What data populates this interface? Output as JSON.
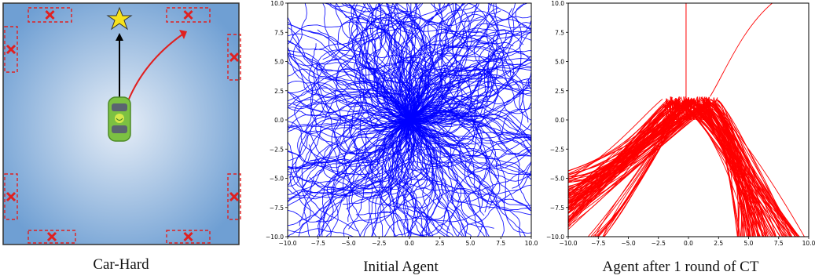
{
  "colors": {
    "env_bg_outer": "#6f9fd3",
    "env_bg_inner": "#e7eef7",
    "obstacle": "#e02020",
    "arrow_black": "#000000",
    "arrow_red": "#e02020",
    "star": "#f7e21b",
    "car": "#7cc142",
    "initial_agent": "#0000ff",
    "ct_agent": "#ff0000"
  },
  "icons": {
    "goal": "star-icon",
    "vehicle": "car-icon",
    "obstacle": "x-mark-icon"
  },
  "captions": {
    "env": "Car-Hard",
    "initial": "Initial Agent",
    "after_ct": "Agent after 1 round of CT"
  },
  "chart_data": [
    {
      "type": "scatter",
      "title": "",
      "xlabel": "",
      "ylabel": "",
      "xlim": [
        -10.0,
        10.0
      ],
      "ylim": [
        -10.0,
        10.0
      ],
      "xticks": [
        "−10.0",
        "−7.5",
        "−5.0",
        "−2.5",
        "0.0",
        "2.5",
        "5.0",
        "7.5",
        "10.0"
      ],
      "yticks": [
        "−10.0",
        "−7.5",
        "−5.0",
        "−2.5",
        "0.0",
        "2.5",
        "5.0",
        "7.5",
        "10.0"
      ],
      "grid": false,
      "legend": "none",
      "description": "Hundreds of random-walk trajectories radiating from the origin in all directions, filling the whole square",
      "series": [
        {
          "color": "#0000ff",
          "start": [
            0,
            0
          ],
          "endpoints_sample": [
            [
              -10,
              6
            ],
            [
              -10,
              -3
            ],
            [
              -6,
              -10
            ],
            [
              3,
              -10
            ],
            [
              9,
              -9
            ],
            [
              10,
              2
            ],
            [
              8,
              9
            ],
            [
              -2,
              10
            ],
            [
              -9,
              9
            ],
            [
              10,
              -6
            ]
          ]
        }
      ]
    },
    {
      "type": "scatter",
      "title": "",
      "xlabel": "",
      "ylabel": "",
      "xlim": [
        -10.0,
        10.0
      ],
      "ylim": [
        -10.0,
        10.0
      ],
      "xticks": [
        "−10.0",
        "−7.5",
        "−5.0",
        "−2.5",
        "0.0",
        "2.5",
        "5.0",
        "7.5",
        "10.0"
      ],
      "yticks": [
        "−10.0",
        "−7.5",
        "−5.0",
        "−2.5",
        "0.0",
        "2.5",
        "5.0",
        "7.5",
        "10.0"
      ],
      "grid": false,
      "legend": "none",
      "description": "Trajectories rise to a jagged cap near y=1.5–2 around x∈[-2,2], then fan down-left toward (-10,-6) and down-right toward (8,-10); a few go straight up from x≈-0.2 and curve to (7,10)",
      "series": [
        {
          "color": "#ff0000",
          "start": [
            0,
            0
          ],
          "cap_y": [
            1.2,
            2.0
          ],
          "left_branch_end": [
            -10,
            -6.5
          ],
          "right_branch_end": [
            8.5,
            -10
          ],
          "upward": [
            [
              -0.2,
              0
            ],
            [
              -0.2,
              10
            ]
          ],
          "curve_up": [
            [
              1.8,
              2.0
            ],
            [
              7.0,
              10.0
            ]
          ]
        }
      ]
    }
  ]
}
